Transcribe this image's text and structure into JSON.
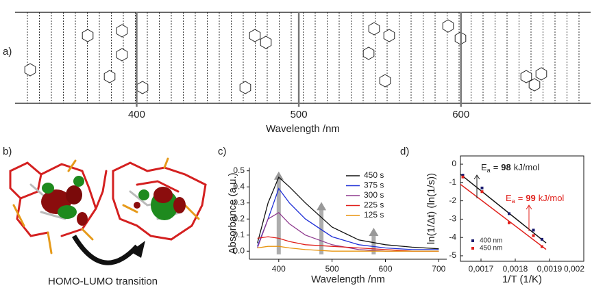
{
  "figure": {
    "panel_labels": [
      "a)",
      "b)",
      "c)",
      "d)"
    ],
    "caption": "HOMO-LUMO transition"
  },
  "chart_data": [
    {
      "type": "axis",
      "xlabel": "Wavelength /nm",
      "xlim": [
        325,
        680
      ],
      "xticks": [
        400,
        500,
        600
      ]
    },
    {
      "type": "line",
      "xlabel": "Wavelength /nm",
      "ylabel": "Absorbance (a.u.)",
      "xlim": [
        345,
        715
      ],
      "ylim": [
        -0.05,
        0.52
      ],
      "xticks": [
        400,
        500,
        600,
        700
      ],
      "yticks": [
        {
          "value": 0,
          "label": "0.0"
        },
        {
          "value": 0.1,
          "label": "0.1"
        },
        {
          "value": 0.2,
          "label": "0.2"
        },
        {
          "value": 0.3,
          "label": "0.3"
        },
        {
          "value": 0.4,
          "label": "0.4"
        },
        {
          "value": 0.5,
          "label": "0.5"
        }
      ],
      "x": [
        360,
        380,
        400,
        420,
        450,
        500,
        550,
        600,
        650,
        700
      ],
      "series": [
        {
          "name": "450 s",
          "color": "#111111",
          "values": [
            0.05,
            0.3,
            0.46,
            0.4,
            0.3,
            0.15,
            0.07,
            0.04,
            0.025,
            0.015
          ]
        },
        {
          "name": "375 s",
          "color": "#1f2fd6",
          "values": [
            0.03,
            0.2,
            0.39,
            0.3,
            0.2,
            0.09,
            0.04,
            0.02,
            0.01,
            0.01
          ]
        },
        {
          "name": "300 s",
          "color": "#8e3a8e",
          "values": [
            0.02,
            0.2,
            0.24,
            0.17,
            0.1,
            0.04,
            0.01,
            0.0,
            0.0,
            0.0
          ]
        },
        {
          "name": "225 s",
          "color": "#e0201b",
          "values": [
            0.08,
            0.09,
            0.08,
            0.06,
            0.04,
            0.03,
            0.02,
            0.01,
            0.0,
            0.0
          ]
        },
        {
          "name": "125 s",
          "color": "#e8940e",
          "values": [
            0.02,
            0.03,
            0.03,
            0.02,
            0.01,
            0.0,
            0.0,
            0.0,
            0.0,
            0.0
          ]
        }
      ]
    },
    {
      "type": "scatter",
      "xlabel": "1/T (1/K)",
      "ylabel": "ln(1/Δt) (ln(1/s))",
      "xlim": [
        0.00164,
        0.002
      ],
      "ylim": [
        -5.3,
        0.45
      ],
      "xticks": [
        {
          "value": 0.0017,
          "label": "0,0017"
        },
        {
          "value": 0.0018,
          "label": "0,0018"
        },
        {
          "value": 0.0019,
          "label": "0,0019"
        },
        {
          "value": 0.002,
          "label": "0,002"
        }
      ],
      "yticks": [
        0,
        -1,
        -2,
        -3,
        -4,
        -5
      ],
      "series": [
        {
          "name": "400 nm",
          "color": "#1a1a6e",
          "x": [
            0.001647,
            0.001703,
            0.001782,
            0.001853,
            0.001878
          ],
          "values": [
            -0.6,
            -1.3,
            -2.7,
            -3.6,
            -4.1
          ]
        },
        {
          "name": "450 nm",
          "color": "#e0201b",
          "x": [
            0.001647,
            0.001703,
            0.001782,
            0.001853,
            0.001878
          ],
          "values": [
            -0.7,
            -1.5,
            -3.2,
            -3.9,
            -4.5
          ]
        }
      ],
      "fits": [
        {
          "color": "#111111",
          "x": [
            0.00164,
            0.00189
          ],
          "values": [
            -0.55,
            -4.3
          ]
        },
        {
          "color": "#e0201b",
          "x": [
            0.00164,
            0.00189
          ],
          "values": [
            -1.1,
            -4.65
          ]
        }
      ],
      "annotations": [
        {
          "symbol": "E",
          "subscript": "a",
          "equals": "=",
          "value": 98,
          "unit": "kJ/mol",
          "color": "#222222"
        },
        {
          "symbol": "E",
          "subscript": "a",
          "equals": "=",
          "value": 99,
          "unit": "kJ/mol",
          "color": "#e0201b"
        }
      ]
    }
  ]
}
